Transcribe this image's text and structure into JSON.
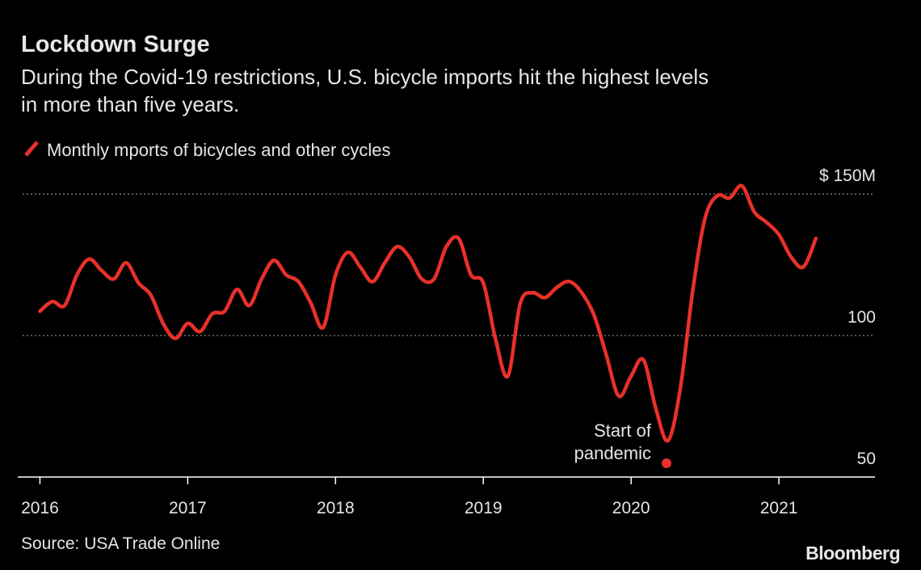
{
  "chart_data": {
    "type": "line",
    "title": "Lockdown Surge",
    "subtitle": "During the Covid-19 restrictions, U.S. bicycle imports hit the highest levels in more than five years.",
    "annotation": [
      "Start of",
      "pandemic"
    ],
    "source": "Source: USA Trade Online",
    "brand": "Bloomberg",
    "x": [
      2016,
      2016.0833,
      2016.1667,
      2016.25,
      2016.3333,
      2016.4167,
      2016.5,
      2016.5833,
      2016.6667,
      2016.75,
      2016.8333,
      2016.9167,
      2017,
      2017.0833,
      2017.1667,
      2017.25,
      2017.3333,
      2017.4167,
      2017.5,
      2017.5833,
      2017.6667,
      2017.75,
      2017.8333,
      2017.9167,
      2018,
      2018.0833,
      2018.1667,
      2018.25,
      2018.3333,
      2018.4167,
      2018.5,
      2018.5833,
      2018.6667,
      2018.75,
      2018.8333,
      2018.9167,
      2019,
      2019.0833,
      2019.1667,
      2019.25,
      2019.3333,
      2019.4167,
      2019.5,
      2019.5833,
      2019.6667,
      2019.75,
      2019.8333,
      2019.9167,
      2020,
      2020.0833,
      2020.1667,
      2020.25,
      2020.3333,
      2020.4167,
      2020.5,
      2020.5833,
      2020.6667,
      2020.75,
      2020.8333,
      2020.9167,
      2021,
      2021.0833,
      2021.1667,
      2021.25
    ],
    "series": [
      {
        "name": "Monthly mports of bicycles and other cycles",
        "color": "#e8302a",
        "values": [
          108.6,
          112,
          110.6,
          121.4,
          127,
          123,
          120,
          125.7,
          118.6,
          114.3,
          104.3,
          99,
          104.3,
          101.4,
          107.7,
          108.6,
          116.3,
          110.6,
          120,
          126.6,
          121.4,
          119,
          111.4,
          102.9,
          121.4,
          129.4,
          124.3,
          119,
          125.7,
          131.4,
          127.7,
          120,
          120,
          131.4,
          134.3,
          121.4,
          118.6,
          98.6,
          85.7,
          111.4,
          115.1,
          113.4,
          117.1,
          119.1,
          115.1,
          107.1,
          92.9,
          78.6,
          85.7,
          91.4,
          74.3,
          62.9,
          81.4,
          115.7,
          141.4,
          149.4,
          148.6,
          152.9,
          143.7,
          140,
          135.7,
          127.7,
          124.3,
          134.3
        ]
      }
    ],
    "xlim": [
      2015.85,
      2021.65
    ],
    "xticks": [
      2016,
      2017,
      2018,
      2019,
      2020,
      2021
    ],
    "ylim": [
      50,
      150
    ],
    "yticks": [
      50,
      100,
      {
        "value": 150,
        "label": "$ 150M"
      }
    ],
    "grid": true
  }
}
